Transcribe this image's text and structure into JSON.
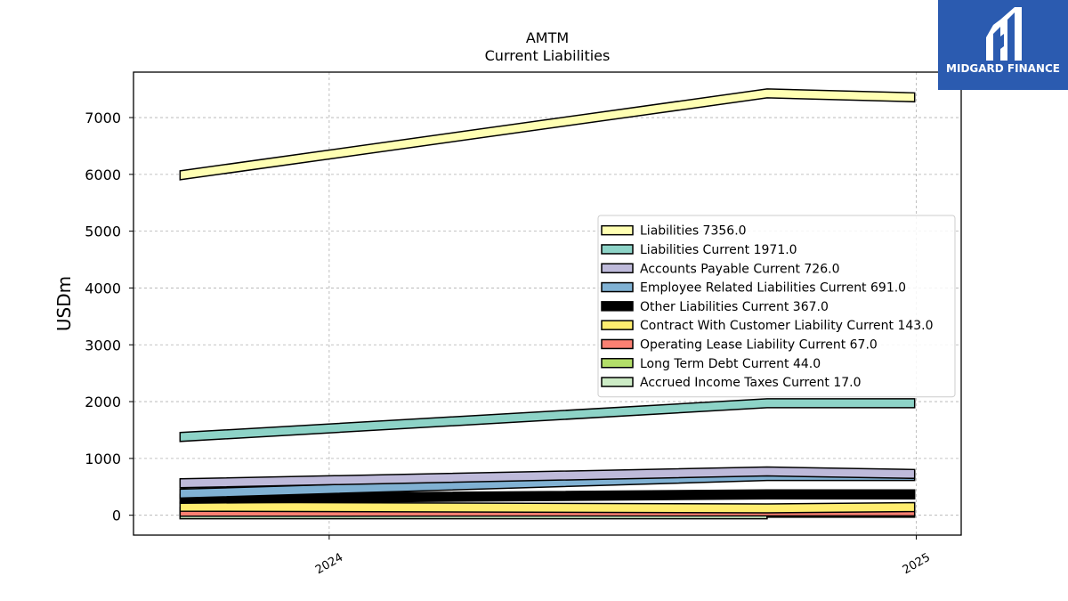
{
  "chart_data": {
    "type": "area",
    "title": "AMTM",
    "subtitle": "Current  Liabilities",
    "ylabel": "USDm",
    "xlabel": "",
    "ylim": [
      -350,
      7800
    ],
    "yticks": [
      0,
      1000,
      2000,
      3000,
      4000,
      5000,
      6000,
      7000
    ],
    "xlim": [
      "2023-09-01",
      "2025-01-29"
    ],
    "xticks": [
      {
        "date": "2024-01-01",
        "label": "2024"
      },
      {
        "date": "2025-01-01",
        "label": "2025"
      }
    ],
    "grid": true,
    "legend_position": "center-right",
    "series": [
      {
        "name": "Liabilities",
        "legend": "Liabilities  7356.0",
        "color": "#ffffb3",
        "points": [
          [
            "2023-09-30",
            5983
          ],
          [
            "2024-09-30",
            7425
          ],
          [
            "2024-12-31",
            7356
          ]
        ]
      },
      {
        "name": "Liabilities Current",
        "legend": "Liabilities Current  1971.0",
        "color": "#8dd3c7",
        "points": [
          [
            "2023-09-30",
            1377
          ],
          [
            "2024-09-30",
            1971
          ],
          [
            "2024-12-31",
            1971
          ]
        ]
      },
      {
        "name": "Accounts Payable Current",
        "legend": "Accounts Payable Current  726.0",
        "color": "#bebada",
        "points": [
          [
            "2023-09-30",
            562
          ],
          [
            "2024-09-30",
            770
          ],
          [
            "2024-12-31",
            726
          ]
        ]
      },
      {
        "name": "Employee Related Liabilities Current",
        "legend": "Employee Related Liabilities Current  691.0",
        "color": "#80b1d3",
        "points": [
          [
            "2023-09-30",
            380
          ],
          [
            "2024-09-30",
            691
          ],
          [
            "2024-12-31",
            691
          ]
        ]
      },
      {
        "name": "Other Liabilities Current",
        "legend": "Other Liabilities Current  367.0",
        "color": "#000000",
        "points": [
          [
            "2023-09-30",
            290
          ],
          [
            "2024-09-30",
            367
          ],
          [
            "2024-12-31",
            367
          ]
        ]
      },
      {
        "name": "Contract With Customer Liability Current",
        "legend": "Contract With Customer Liability Current  143.0",
        "color": "#ffed6f",
        "points": [
          [
            "2023-09-30",
            150
          ],
          [
            "2024-09-30",
            120
          ],
          [
            "2024-12-31",
            143
          ]
        ]
      },
      {
        "name": "Operating Lease Liability Current",
        "legend": "Operating Lease Liability Current  67.0",
        "color": "#fb8072",
        "points": [
          [
            "2023-09-30",
            60
          ],
          [
            "2024-09-30",
            67
          ],
          [
            "2024-12-31",
            67
          ]
        ]
      },
      {
        "name": "Long Term Debt Current",
        "legend": "Long Term Debt Current  44.0",
        "color": "#b3de69",
        "points": [
          [
            "2024-09-30",
            44
          ],
          [
            "2024-12-31",
            44
          ]
        ]
      },
      {
        "name": "Accrued Income Taxes Current",
        "legend": "Accrued Income Taxes Current  17.0",
        "color": "#ccebc5",
        "points": [
          [
            "2023-09-30",
            17
          ],
          [
            "2024-09-30",
            17
          ]
        ]
      }
    ]
  },
  "logo": {
    "text": "MIDGARD FINANCE",
    "color": "#2b5bb0"
  }
}
